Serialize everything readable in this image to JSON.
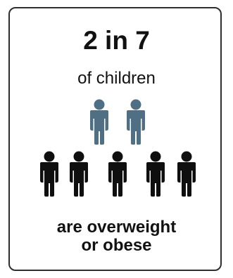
{
  "headline": "2 in 7",
  "subline": "of children",
  "caption": {
    "line1": "are overweight",
    "line2": "or obese"
  },
  "ratio": {
    "highlighted": 2,
    "total": 7
  },
  "colors": {
    "highlight": "#4f6f85",
    "base": "#0f0f0f",
    "border": "#2e2e2e",
    "text": "#111111"
  },
  "icon": "child-figure-icon"
}
